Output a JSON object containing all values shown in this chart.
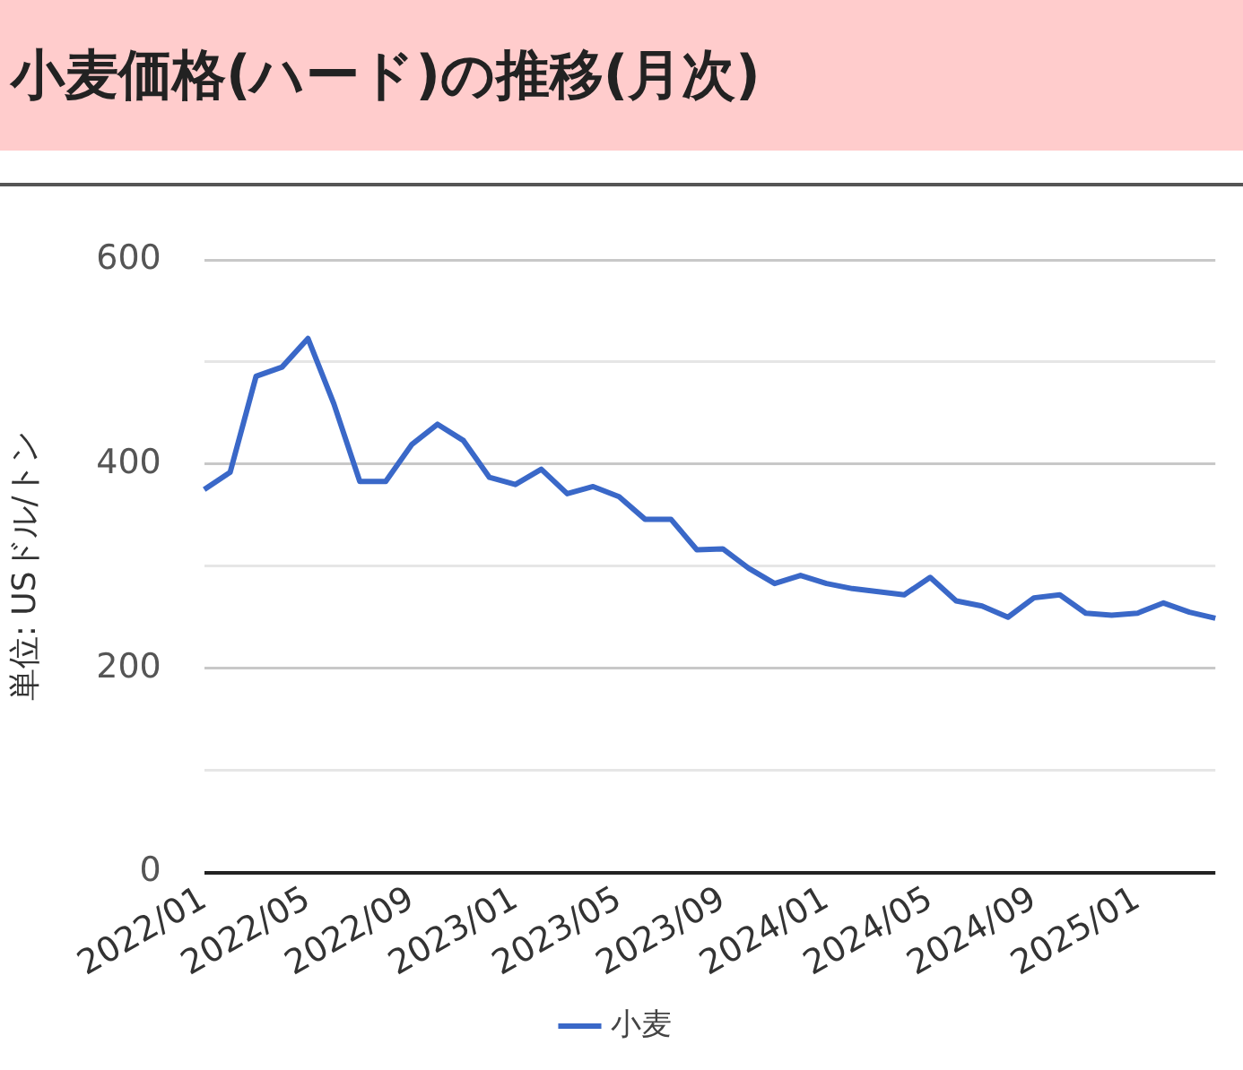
{
  "chart_data": {
    "type": "line",
    "title": "小麦価格(ハード)の推移(月次)",
    "ylabel": "単位: USドル/トン",
    "categories": [
      "2022/01",
      null,
      null,
      null,
      "2022/05",
      null,
      null,
      null,
      "2022/09",
      null,
      null,
      null,
      "2023/01",
      null,
      null,
      null,
      "2023/05",
      null,
      null,
      null,
      "2023/09",
      null,
      null,
      null,
      "2024/01",
      null,
      null,
      null,
      "2024/05",
      null,
      null,
      null,
      "2024/09",
      null,
      null,
      null,
      "2025/01",
      null,
      null,
      null
    ],
    "series": [
      {
        "name": "小麦",
        "color": "#3a68c8",
        "values": [
          375,
          392,
          486,
          495,
          523,
          459,
          383,
          383,
          419,
          439,
          423,
          387,
          380,
          395,
          371,
          378,
          368,
          346,
          346,
          316,
          317,
          298,
          283,
          291,
          283,
          278,
          275,
          272,
          289,
          266,
          261,
          250,
          269,
          272,
          254,
          252,
          254,
          264,
          255,
          249
        ]
      }
    ],
    "ylim": [
      0,
      600
    ],
    "yticks": [
      0,
      {
        "value": 100,
        "label": null
      },
      200,
      {
        "value": 300,
        "label": null
      },
      400,
      {
        "value": 500,
        "label": null
      },
      600
    ],
    "grid": "y",
    "legend": "bottom",
    "marker": "none",
    "line_style": "solid"
  }
}
